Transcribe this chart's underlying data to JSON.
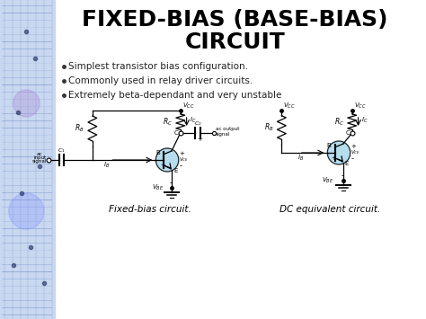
{
  "title_line1": "FIXED-BIAS (BASE-BIAS)",
  "title_line2": "CIRCUIT",
  "bullets": [
    "Simplest transistor bias configuration.",
    "Commonly used in relay driver circuits.",
    "Extremely beta-dependant and very unstable"
  ],
  "caption_left": "Fixed-bias circuit.",
  "caption_right": "DC equivalent circuit.",
  "bg_color": "#ffffff",
  "title_color": "#000000",
  "bullet_color": "#222222",
  "circuit_color": "#000000",
  "transistor_fill": "#a8d8ea"
}
